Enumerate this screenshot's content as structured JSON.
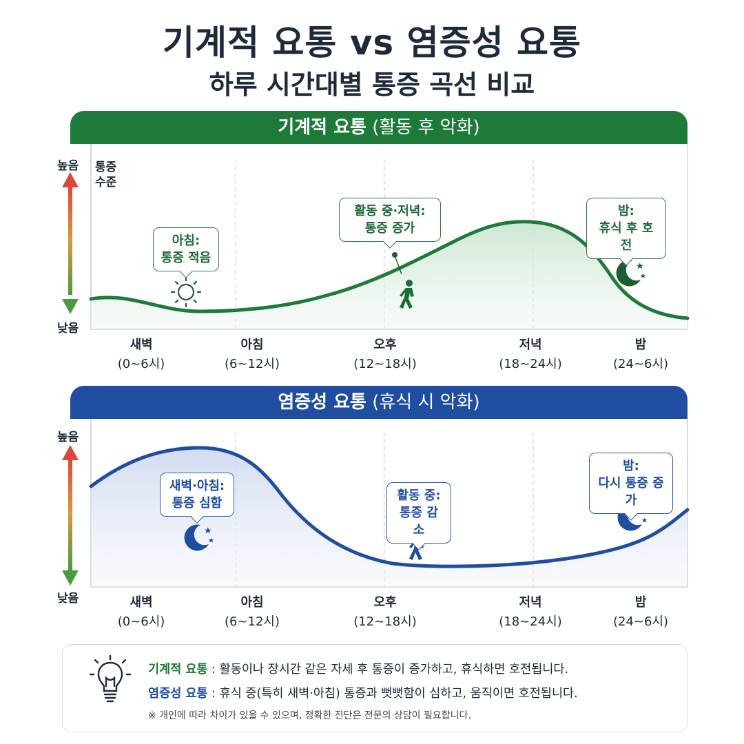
{
  "title": "기계적 요통 vs 염증성 요통",
  "subtitle": "하루 시간대별 통증 곡선 비교",
  "colors": {
    "mechanical": "#1e7a38",
    "inflammatory": "#1f4ea1",
    "arrow_top": "#e0453a",
    "arrow_bottom": "#4a9a3e"
  },
  "y_axis": {
    "high": "높음",
    "low": "낮음",
    "title_line1": "통증",
    "title_line2": "수준"
  },
  "time_periods": [
    {
      "name": "새벽",
      "range": "(0~6시)"
    },
    {
      "name": "아침",
      "range": "(6~12시)"
    },
    {
      "name": "오후",
      "range": "(12~18시)"
    },
    {
      "name": "저녁",
      "range": "(18~24시)"
    },
    {
      "name": "밤",
      "range": "(24~6시)"
    }
  ],
  "mechanical": {
    "banner_bold": "기계적 요통",
    "banner_paren": "(활동 후 악화)",
    "bubbles": [
      {
        "line1": "아침:",
        "line2": "통증 적음",
        "icon": "sun-icon"
      },
      {
        "line1": "활동 중·저녁:",
        "line2": "통증 증가",
        "icon": "walking-person-icon"
      },
      {
        "line1": "밤:",
        "line2": "휴식 후 호전",
        "icon": "moon-icon"
      }
    ]
  },
  "inflammatory": {
    "banner_bold": "염증성 요통",
    "banner_paren": "(휴식 시 악화)",
    "bubbles": [
      {
        "line1": "새벽·아침:",
        "line2": "통증 심함",
        "icon": "moon-icon"
      },
      {
        "line1": "활동 중:",
        "line2": "통증 감소",
        "icon": "walking-person-icon"
      },
      {
        "line1": "밤:",
        "line2": "다시 통증 증가",
        "icon": "moon-icon"
      }
    ]
  },
  "notes": {
    "mechanical_key": "기계적 요통",
    "mechanical_text": ": 활동이나 장시간 같은 자세 후 통증이 증가하고, 휴식하면 호전됩니다.",
    "inflammatory_key": "염증성 요통",
    "inflammatory_text": ": 휴식 중(특히 새벽·아침) 통증과 뻣뻣함이 심하고, 움직이면 호전됩니다.",
    "disclaimer": "※ 개인에 따라 차이가 있을 수 있으며, 정확한 진단은 전문의 상담이 필요합니다.",
    "icon": "lightbulb-icon"
  }
}
